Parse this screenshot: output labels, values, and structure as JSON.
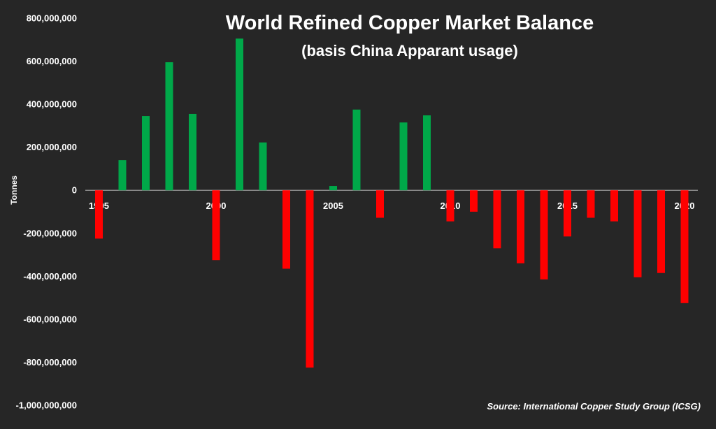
{
  "chart_data": {
    "type": "bar",
    "title": "World Refined Copper Market Balance",
    "subtitle": "(basis China Apparant usage)",
    "ylabel": "Tonnes",
    "xlabel": "",
    "source": "Source: International Copper Study Group (ICSG)",
    "ylim": [
      -1000000000,
      800000000
    ],
    "yticks": [
      800000000,
      600000000,
      400000000,
      200000000,
      0,
      -200000000,
      -400000000,
      -600000000,
      -800000000,
      -1000000000
    ],
    "ytick_labels": [
      "800,000,000",
      "600,000,000",
      "400,000,000",
      "200,000,000",
      "0",
      "-200,000,000",
      "-400,000,000",
      "-600,000,000",
      "-800,000,000",
      "-1,000,000,000"
    ],
    "xtick_labels": [
      "1995",
      "2000",
      "2005",
      "2010",
      "2015",
      "2020"
    ],
    "categories": [
      1995,
      1996,
      1997,
      1998,
      1999,
      2000,
      2001,
      2002,
      2003,
      2004,
      2005,
      2006,
      2007,
      2008,
      2009,
      2010,
      2011,
      2012,
      2013,
      2014,
      2015,
      2016,
      2017,
      2018,
      2019,
      2020
    ],
    "values": [
      -225000000,
      140000000,
      345000000,
      595000000,
      355000000,
      -325000000,
      705000000,
      222000000,
      -365000000,
      -825000000,
      20000000,
      375000000,
      -128000000,
      315000000,
      348000000,
      -145000000,
      -100000000,
      -270000000,
      -340000000,
      -415000000,
      -215000000,
      -128000000,
      -145000000,
      -405000000,
      -385000000,
      -525000000
    ],
    "grid": false,
    "legend": "none",
    "colors": {
      "positive": "#00a849",
      "negative": "#ff0000",
      "background": "#262626",
      "text": "#ffffff"
    }
  }
}
